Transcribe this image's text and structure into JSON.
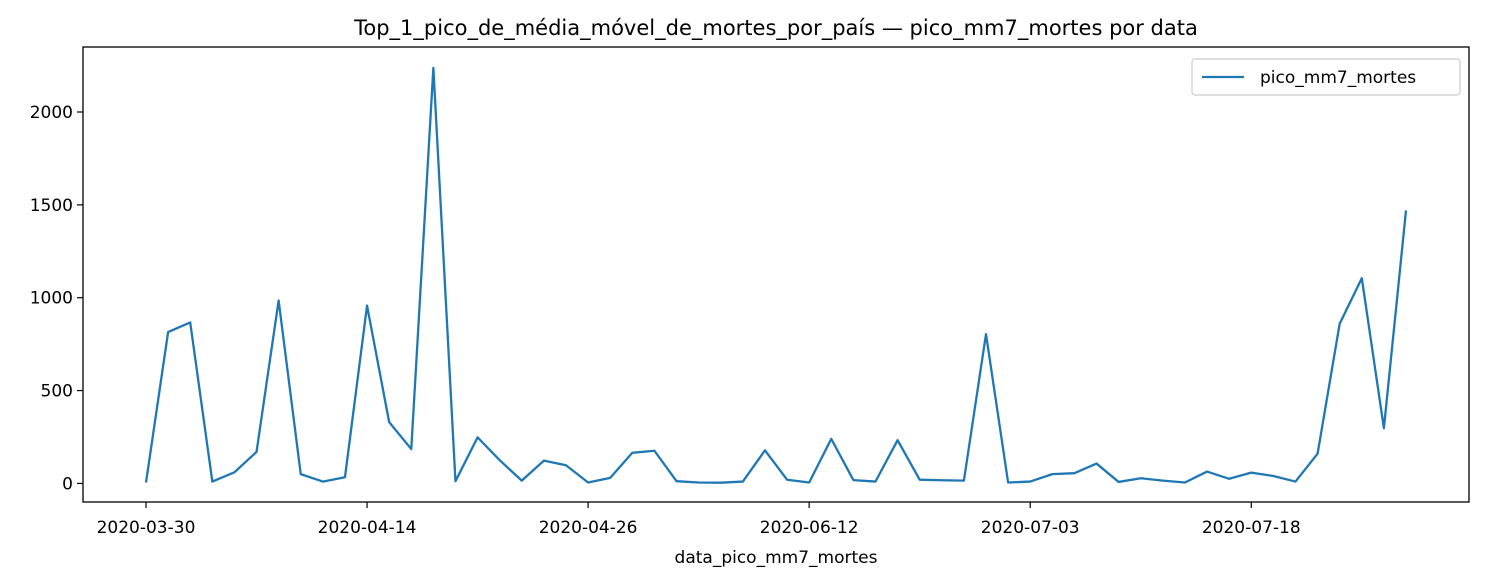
{
  "chart_data": {
    "type": "line",
    "title": "Top_1_pico_de_média_móvel_de_mortes_por_país — pico_mm7_mortes por data",
    "xlabel": "data_pico_mm7_mortes",
    "ylabel": "",
    "ylim": [
      -100,
      2350
    ],
    "yticks": [
      0,
      500,
      1000,
      1500,
      2000
    ],
    "xtick_labels": [
      {
        "index": 0,
        "label": "2020-03-30"
      },
      {
        "index": 10,
        "label": "2020-04-14"
      },
      {
        "index": 20,
        "label": "2020-04-26"
      },
      {
        "index": 30,
        "label": "2020-06-12"
      },
      {
        "index": 40,
        "label": "2020-07-03"
      },
      {
        "index": 50,
        "label": "2020-07-18"
      }
    ],
    "legend_position": "top-right",
    "grid": false,
    "line_color": "#1f77b4",
    "series": [
      {
        "name": "pico_mm7_mortes",
        "values": [
          5,
          815,
          867,
          10,
          60,
          170,
          985,
          50,
          10,
          33,
          957,
          330,
          185,
          2237,
          12,
          248,
          125,
          15,
          123,
          98,
          5,
          30,
          165,
          176,
          12,
          5,
          4,
          10,
          178,
          20,
          5,
          240,
          18,
          10,
          233,
          20,
          17,
          15,
          804,
          5,
          10,
          50,
          55,
          107,
          8,
          28,
          15,
          5,
          64,
          25,
          58,
          40,
          10,
          160,
          860,
          1105,
          297,
          1470
        ]
      }
    ]
  }
}
